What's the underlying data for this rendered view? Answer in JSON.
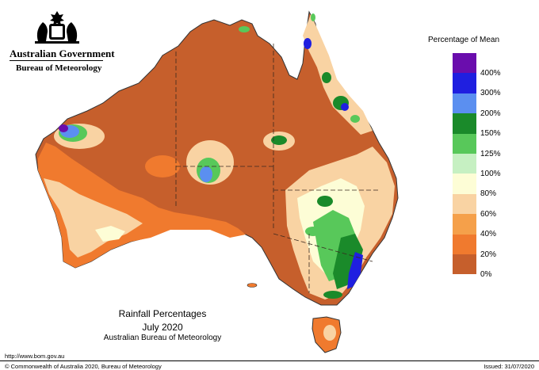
{
  "header": {
    "government": "Australian Government",
    "bureau": "Bureau of Meteorology"
  },
  "legend": {
    "title": "Percentage of Mean",
    "bins": [
      {
        "label": "400%",
        "color": "#6a0dad"
      },
      {
        "label": "300%",
        "color": "#1f1fe0"
      },
      {
        "label": "200%",
        "color": "#5b8ff0"
      },
      {
        "label": "150%",
        "color": "#1a8a2a"
      },
      {
        "label": "125%",
        "color": "#58c85a"
      },
      {
        "label": "100%",
        "color": "#c6f0c2"
      },
      {
        "label": "80%",
        "color": "#fdfdd6"
      },
      {
        "label": "60%",
        "color": "#f9d3a3"
      },
      {
        "label": "40%",
        "color": "#f5a04a"
      },
      {
        "label": "20%",
        "color": "#f07a2e"
      },
      {
        "label": "0%",
        "color": "#c65f2c"
      }
    ]
  },
  "map": {
    "title": "Rainfall Percentages",
    "period": "July 2020",
    "source": "Australian Bureau of Meteorology",
    "colors": {
      "base": "#c65f2c",
      "low": "#f07a2e",
      "mid": "#f5a04a",
      "pale": "#f9d3a3",
      "cream": "#fdfdd6",
      "lightgreen": "#c6f0c2",
      "green": "#58c85a",
      "darkgreen": "#1a8a2a",
      "lightblue": "#5b8ff0",
      "blue": "#1f1fe0",
      "purple": "#6a0dad"
    }
  },
  "footer": {
    "url": "http://www.bom.gov.au",
    "copyright": "© Commonwealth of Australia 2020, Bureau of Meteorology",
    "issued": "Issued: 31/07/2020"
  }
}
